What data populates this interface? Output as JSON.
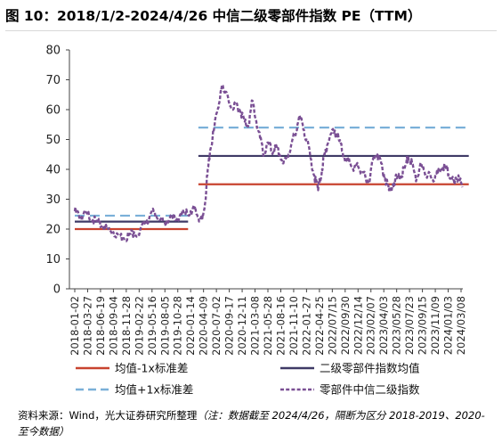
{
  "title": "图 10：2018/1/2-2024/4/26 中信二级零部件指数 PE（TTM）",
  "source": {
    "prefix": "资料来源：Wind，光大证券研究所整理",
    "note": "（注：数据截至 2024/4/26，隔断为区分 2018-2019、2020-至今数据）"
  },
  "chart_data": {
    "type": "line",
    "title": "",
    "xlabel": "",
    "ylabel": "",
    "ylim": [
      0,
      80
    ],
    "yticks": [
      0,
      10,
      20,
      30,
      40,
      50,
      60,
      70,
      80
    ],
    "grid": false,
    "legend_position": "bottom",
    "x_tick_labels": [
      "2018-01-02",
      "2018-03-27",
      "2018-06-19",
      "2018-09-04",
      "2018-11-28",
      "2019-02-22",
      "2019-05-16",
      "2019-08-05",
      "2019-10-28",
      "2020-01-14",
      "2020-04-09",
      "2020-07-02",
      "2020-09-17",
      "2020-12-11",
      "2021-03-08",
      "2021-05-28",
      "2021-08-16",
      "2021-11-10",
      "2022-01-27",
      "2022-04-25",
      "2022/07/15",
      "2022/09/30",
      "2022/12/14",
      "2023/02/07",
      "2023/04/03",
      "2023/05/28",
      "2023/07/23",
      "2023/09/15",
      "2023/11/09",
      "2024/01/03",
      "2024/03/08"
    ],
    "series": [
      {
        "name": "零部件中信二级指数",
        "color": "#7a4f94",
        "style": "dash",
        "x_index": [
          0,
          0.3,
          0.6,
          1,
          1.4,
          1.8,
          2.2,
          2.6,
          3,
          3.4,
          3.8,
          4.2,
          4.6,
          5,
          5.4,
          5.8,
          6.2,
          6.6,
          7,
          7.4,
          7.8,
          8.2,
          8.6,
          9,
          9.3,
          9.6,
          9.9,
          10.1,
          10.3,
          10.5,
          10.8,
          11.1,
          11.3,
          11.5,
          11.7,
          12,
          12.3,
          12.6,
          12.9,
          13.2,
          13.5,
          13.8,
          14.1,
          14.4,
          14.7,
          15,
          15.3,
          15.6,
          15.9,
          16.2,
          16.5,
          16.8,
          17.1,
          17.4,
          17.7,
          18,
          18.3,
          18.6,
          18.9,
          19.2,
          19.4,
          19.6,
          19.9,
          20.2,
          20.5,
          20.8,
          21.1,
          21.4,
          21.7,
          22,
          22.3,
          22.6,
          22.9,
          23.2,
          23.5,
          23.8,
          24.1,
          24.4,
          24.7,
          25,
          25.3,
          25.6,
          25.9,
          26.2,
          26.5,
          26.8,
          27.1,
          27.4,
          27.7,
          28,
          28.3,
          28.6,
          28.9,
          29.2,
          29.5,
          29.8,
          30.1
        ],
        "values": [
          26,
          25,
          24,
          25,
          23,
          22,
          21,
          20,
          19,
          18,
          17,
          18,
          19,
          18,
          22,
          24,
          26,
          23,
          22,
          24,
          23,
          25,
          25,
          26,
          27,
          24,
          23,
          28,
          38,
          46,
          53,
          60,
          65,
          68,
          66,
          62,
          60,
          62,
          59,
          56,
          55,
          63,
          56,
          50,
          45,
          49,
          46,
          47,
          45,
          42,
          44,
          48,
          52,
          57,
          55,
          50,
          44,
          38,
          33,
          40,
          45,
          48,
          52,
          53,
          50,
          46,
          43,
          42,
          40,
          41,
          39,
          37,
          36,
          44,
          45,
          42,
          37,
          33,
          35,
          37,
          38,
          40,
          44,
          42,
          36,
          41,
          40,
          38,
          37,
          38,
          39,
          41,
          40,
          37,
          35,
          38,
          34
        ]
      },
      {
        "name": "二级零部件指数均值",
        "color": "#3f3a66",
        "style": "solid",
        "segments": [
          {
            "from_index": 0,
            "to_index": 8.8,
            "value": 22.5
          },
          {
            "from_index": 9.6,
            "to_index": 30.6,
            "value": 44.5
          }
        ]
      },
      {
        "name": "均值-1x标准差",
        "color": "#c8432f",
        "style": "solid",
        "segments": [
          {
            "from_index": 0,
            "to_index": 8.8,
            "value": 20
          },
          {
            "from_index": 9.6,
            "to_index": 30.6,
            "value": 35
          }
        ]
      },
      {
        "name": "均值+1x标准差",
        "color": "#7ab0d8",
        "style": "dash",
        "segments": [
          {
            "from_index": 0,
            "to_index": 8.8,
            "value": 24.5
          },
          {
            "from_index": 9.6,
            "to_index": 30.6,
            "value": 54
          }
        ]
      }
    ],
    "legend": [
      {
        "label": "均值-1x标准差",
        "series": "均值-1x标准差"
      },
      {
        "label": "二级零部件指数均值",
        "series": "二级零部件指数均值"
      },
      {
        "label": "均值+1x标准差",
        "series": "均值+1x标准差"
      },
      {
        "label": "零部件中信二级指数",
        "series": "零部件中信二级指数"
      }
    ]
  }
}
